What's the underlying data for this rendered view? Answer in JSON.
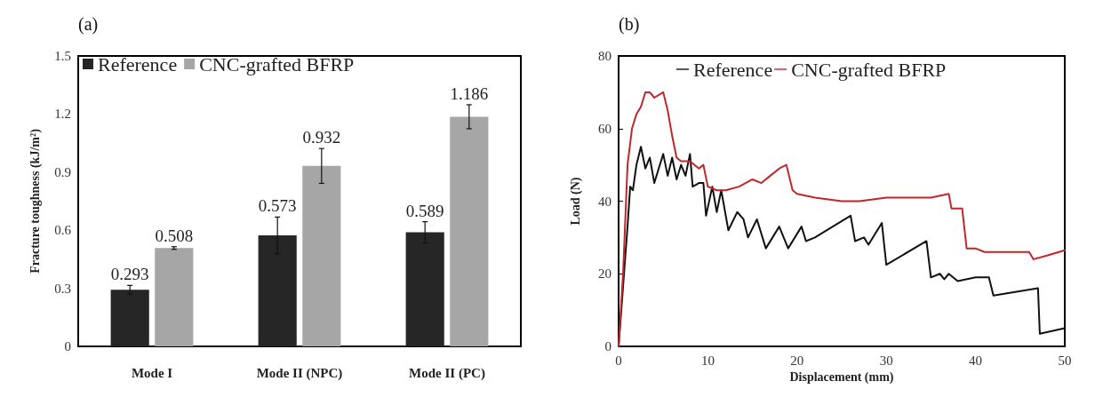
{
  "chart_data": [
    {
      "type": "bar",
      "title": "(a)",
      "ylabel": "Fracture toughness (kJ/m²)",
      "categories": [
        "Mode I",
        "Mode II (NPC)",
        "Mode II (PC)"
      ],
      "series": [
        {
          "name": "Reference",
          "color": "#262626",
          "values": [
            0.293,
            0.573,
            0.589
          ],
          "errors": [
            0.022,
            0.095,
            0.055
          ]
        },
        {
          "name": "CNC-grafted BFRP",
          "color": "#a6a6a6",
          "values": [
            0.508,
            0.932,
            1.186
          ],
          "errors": [
            0.007,
            0.09,
            0.062
          ]
        }
      ],
      "ylim": [
        0,
        1.5
      ],
      "yticks": [
        0,
        0.3,
        0.6,
        0.9,
        1.2,
        1.5
      ],
      "data_labels": true,
      "grid": false,
      "legend": "top left"
    },
    {
      "type": "line",
      "title": "(b)",
      "xlabel": "Displacement (mm)",
      "ylabel": "Load (N)",
      "series": [
        {
          "name": "Reference",
          "color": "#111111",
          "x": [
            0,
            1,
            1.3,
            1.6,
            2,
            2.5,
            3,
            3.5,
            4,
            5,
            5.5,
            6,
            6.5,
            7,
            7.5,
            8,
            8.3,
            9,
            9.5,
            9.8,
            10.5,
            11,
            11.5,
            12.3,
            13.3,
            14,
            14.5,
            15.5,
            16.5,
            18,
            19,
            20.5,
            21,
            22,
            26,
            26.5,
            27.5,
            28,
            29.5,
            30,
            34.5,
            35,
            36,
            36.5,
            37,
            38,
            40,
            41.5,
            42,
            47,
            47.2,
            50
          ],
          "values": [
            0,
            33,
            44,
            43,
            50,
            55,
            49,
            52,
            45,
            53,
            47,
            52,
            46,
            50,
            47,
            53,
            44,
            45,
            45,
            36,
            44,
            37,
            43,
            32,
            37,
            35,
            30,
            35,
            27,
            33,
            27,
            33,
            29,
            30,
            36,
            29,
            30,
            28,
            34,
            22.5,
            29,
            19,
            20,
            18.5,
            20,
            18,
            19,
            19,
            14,
            16,
            3.5,
            5
          ]
        },
        {
          "name": "CNC-grafted BFRP",
          "color": "#c0262b",
          "x": [
            0,
            0.5,
            1,
            1.5,
            2,
            2.5,
            3,
            3.5,
            4,
            5,
            5.5,
            6,
            6.5,
            7,
            8,
            9,
            9.5,
            10,
            11,
            12,
            13.5,
            15,
            16,
            17,
            18,
            18.8,
            19.5,
            20,
            22,
            25,
            27,
            30,
            33,
            35,
            37,
            37.3,
            38.5,
            39,
            40,
            41,
            43,
            46,
            46.5,
            48,
            50
          ],
          "values": [
            0,
            20,
            50,
            60,
            64,
            66,
            70,
            70,
            68.5,
            70,
            65,
            58,
            52,
            51,
            51,
            49,
            50,
            44,
            43,
            43,
            44,
            46,
            45,
            47,
            49,
            50,
            43,
            42,
            41,
            40,
            40,
            41,
            41,
            41,
            42,
            38,
            38,
            27,
            27,
            26,
            26,
            26,
            24,
            25,
            26.5
          ]
        }
      ],
      "xlim": [
        0,
        50
      ],
      "xticks": [
        0,
        10,
        20,
        30,
        40,
        50
      ],
      "ylim": [
        0,
        80
      ],
      "yticks": [
        0,
        20,
        40,
        60,
        80
      ],
      "grid": false,
      "legend": "top",
      "marker": "none",
      "line_style": "solid"
    }
  ]
}
